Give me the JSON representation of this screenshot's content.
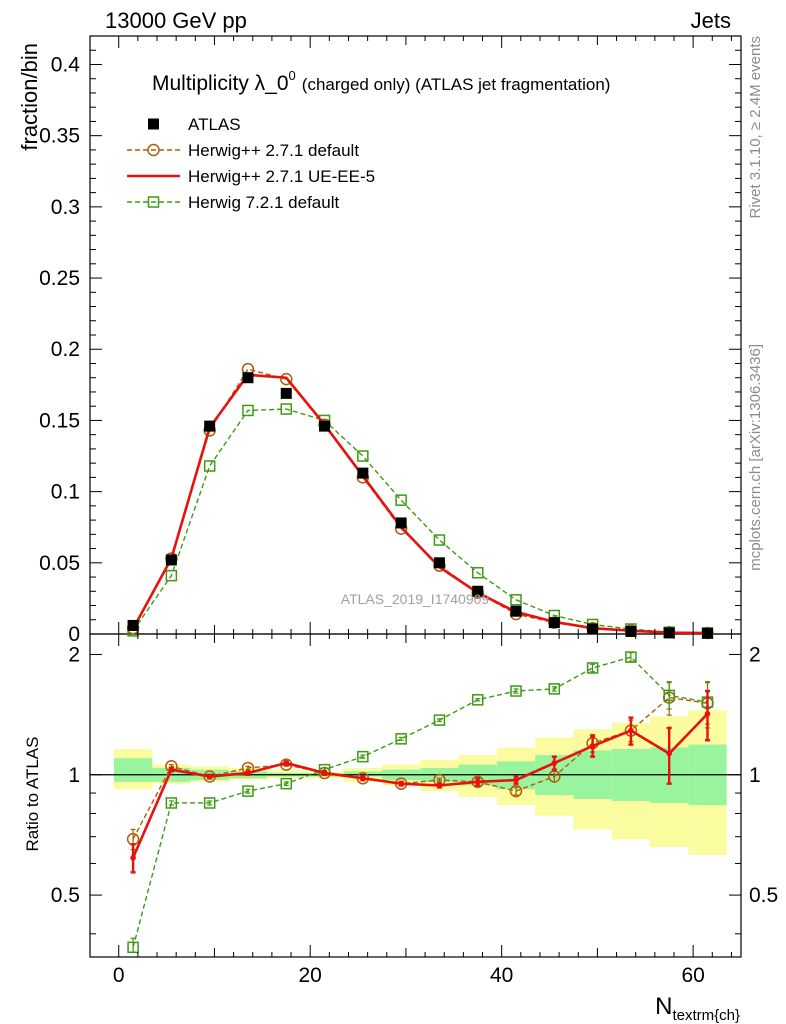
{
  "header": {
    "left": "13000 GeV pp",
    "right": "Jets"
  },
  "side_labels": {
    "rivet": "Rivet 3.1.10, ≥ 2.4M events",
    "mcplots": "mcplots.cern.ch [arXiv:1306.3436]"
  },
  "chart_data": {
    "type": "line",
    "title": "Multiplicity λ_0",
    "title_sup": "0",
    "title_note": "(charged only) (ATLAS jet fragmentation)",
    "watermark": "ATLAS_2019_I1740909",
    "xlabel": "N",
    "xlabel_sub": "textrm{ch}",
    "xlim": [
      -3,
      65
    ],
    "x_ticks": [
      0,
      20,
      40,
      60
    ],
    "legend_position": "top-left",
    "main": {
      "ylabel": "fraction/bin",
      "ylim": [
        0,
        0.42
      ],
      "y_ticks": [
        "0",
        "0.05",
        "0.1",
        "0.15",
        "0.2",
        "0.25",
        "0.3",
        "0.35",
        "0.4"
      ],
      "x": [
        1.5,
        5.5,
        9.5,
        13.5,
        17.5,
        21.5,
        25.5,
        29.5,
        33.5,
        37.5,
        41.5,
        45.5,
        49.5,
        53.5,
        57.5,
        61.5
      ],
      "series": [
        {
          "name": "ATLAS",
          "color": "#000000",
          "style": "data",
          "values": [
            0.006,
            0.052,
            0.146,
            0.18,
            0.169,
            0.146,
            0.113,
            0.078,
            0.05,
            0.03,
            0.016,
            0.008,
            0.0035,
            0.0018,
            0.0008,
            0.0005
          ]
        },
        {
          "name": "Herwig++ 2.7.1 default",
          "color": "#b25c08",
          "style": "circle-dashed",
          "values": [
            0.004,
            0.053,
            0.143,
            0.186,
            0.179,
            0.147,
            0.11,
            0.074,
            0.048,
            0.029,
            0.014,
            0.008,
            0.004,
            0.0025,
            0.0012,
            0.0007
          ]
        },
        {
          "name": "Herwig++ 2.7.1 UE-EE-5",
          "color": "#e8110c",
          "style": "solid",
          "values": [
            0.0037,
            0.053,
            0.145,
            0.182,
            0.18,
            0.147,
            0.111,
            0.075,
            0.047,
            0.029,
            0.0155,
            0.0085,
            0.0041,
            0.0023,
            0.0009,
            0.0007
          ]
        },
        {
          "name": "Herwig 7.2.1 default",
          "color": "#3e9a13",
          "style": "square-dashed",
          "values": [
            0.0022,
            0.041,
            0.118,
            0.157,
            0.158,
            0.15,
            0.125,
            0.094,
            0.066,
            0.043,
            0.024,
            0.013,
            0.0067,
            0.0035,
            0.0012,
            0.0007
          ]
        }
      ]
    },
    "ratio": {
      "ylabel": "Ratio to ATLAS",
      "ylim": [
        0.35,
        2.25
      ],
      "y_ticks": [
        "0.5",
        "1",
        "2"
      ],
      "bands": {
        "x_edges": [
          -0.5,
          3.5,
          7.5,
          11.5,
          15.5,
          19.5,
          23.5,
          27.5,
          31.5,
          35.5,
          39.5,
          43.5,
          47.5,
          51.5,
          55.5,
          59.5,
          63.5
        ],
        "stat_lo": [
          0.96,
          0.96,
          0.97,
          0.98,
          0.99,
          0.99,
          0.99,
          0.97,
          0.96,
          0.94,
          0.92,
          0.89,
          0.87,
          0.86,
          0.85,
          0.84
        ],
        "stat_hi": [
          1.1,
          1.04,
          1.03,
          1.02,
          1.01,
          1.01,
          1.02,
          1.03,
          1.04,
          1.06,
          1.08,
          1.12,
          1.15,
          1.16,
          1.17,
          1.19
        ],
        "syst_lo": [
          0.92,
          0.95,
          0.96,
          0.97,
          0.98,
          0.98,
          0.96,
          0.94,
          0.91,
          0.88,
          0.84,
          0.79,
          0.73,
          0.69,
          0.66,
          0.63
        ],
        "syst_hi": [
          1.16,
          1.06,
          1.05,
          1.04,
          1.03,
          1.02,
          1.04,
          1.06,
          1.09,
          1.12,
          1.17,
          1.24,
          1.3,
          1.35,
          1.4,
          1.45
        ],
        "stat_color": "#99f49e",
        "syst_color": "#fbfba0"
      },
      "series": [
        {
          "name": "Herwig++ 2.7.1 default",
          "color": "#b25c08",
          "style": "circle-dashed",
          "values": [
            0.69,
            1.05,
            0.99,
            1.04,
            1.06,
            1.01,
            0.98,
            0.95,
            0.97,
            0.96,
            0.91,
            0.99,
            1.2,
            1.29,
            1.56,
            1.51
          ],
          "err": [
            0.04,
            0.01,
            0.01,
            0.01,
            0.01,
            0.01,
            0.01,
            0.01,
            0.01,
            0.02,
            0.02,
            0.03,
            0.06,
            0.08,
            0.15,
            0.2
          ]
        },
        {
          "name": "Herwig++ 2.7.1 UE-EE-5",
          "color": "#e8110c",
          "style": "solid",
          "values": [
            0.62,
            1.03,
            0.99,
            1.01,
            1.07,
            1.01,
            0.98,
            0.95,
            0.94,
            0.96,
            0.97,
            1.07,
            1.18,
            1.29,
            1.13,
            1.42
          ],
          "err": [
            0.05,
            0.01,
            0.01,
            0.01,
            0.01,
            0.01,
            0.01,
            0.01,
            0.01,
            0.02,
            0.02,
            0.04,
            0.07,
            0.1,
            0.18,
            0.2
          ]
        },
        {
          "name": "Herwig 7.2.1 default",
          "color": "#3e9a13",
          "style": "square-dashed",
          "values": [
            0.37,
            0.85,
            0.85,
            0.91,
            0.95,
            1.03,
            1.11,
            1.23,
            1.37,
            1.54,
            1.62,
            1.64,
            1.85,
            1.97,
            1.58,
            1.52
          ],
          "err": [
            0.02,
            0.01,
            0.01,
            0.01,
            0.01,
            0.01,
            0.01,
            0.01,
            0.01,
            0.01,
            0.02,
            0.02,
            0.04,
            0.05,
            0.12,
            0.18
          ]
        }
      ]
    }
  }
}
